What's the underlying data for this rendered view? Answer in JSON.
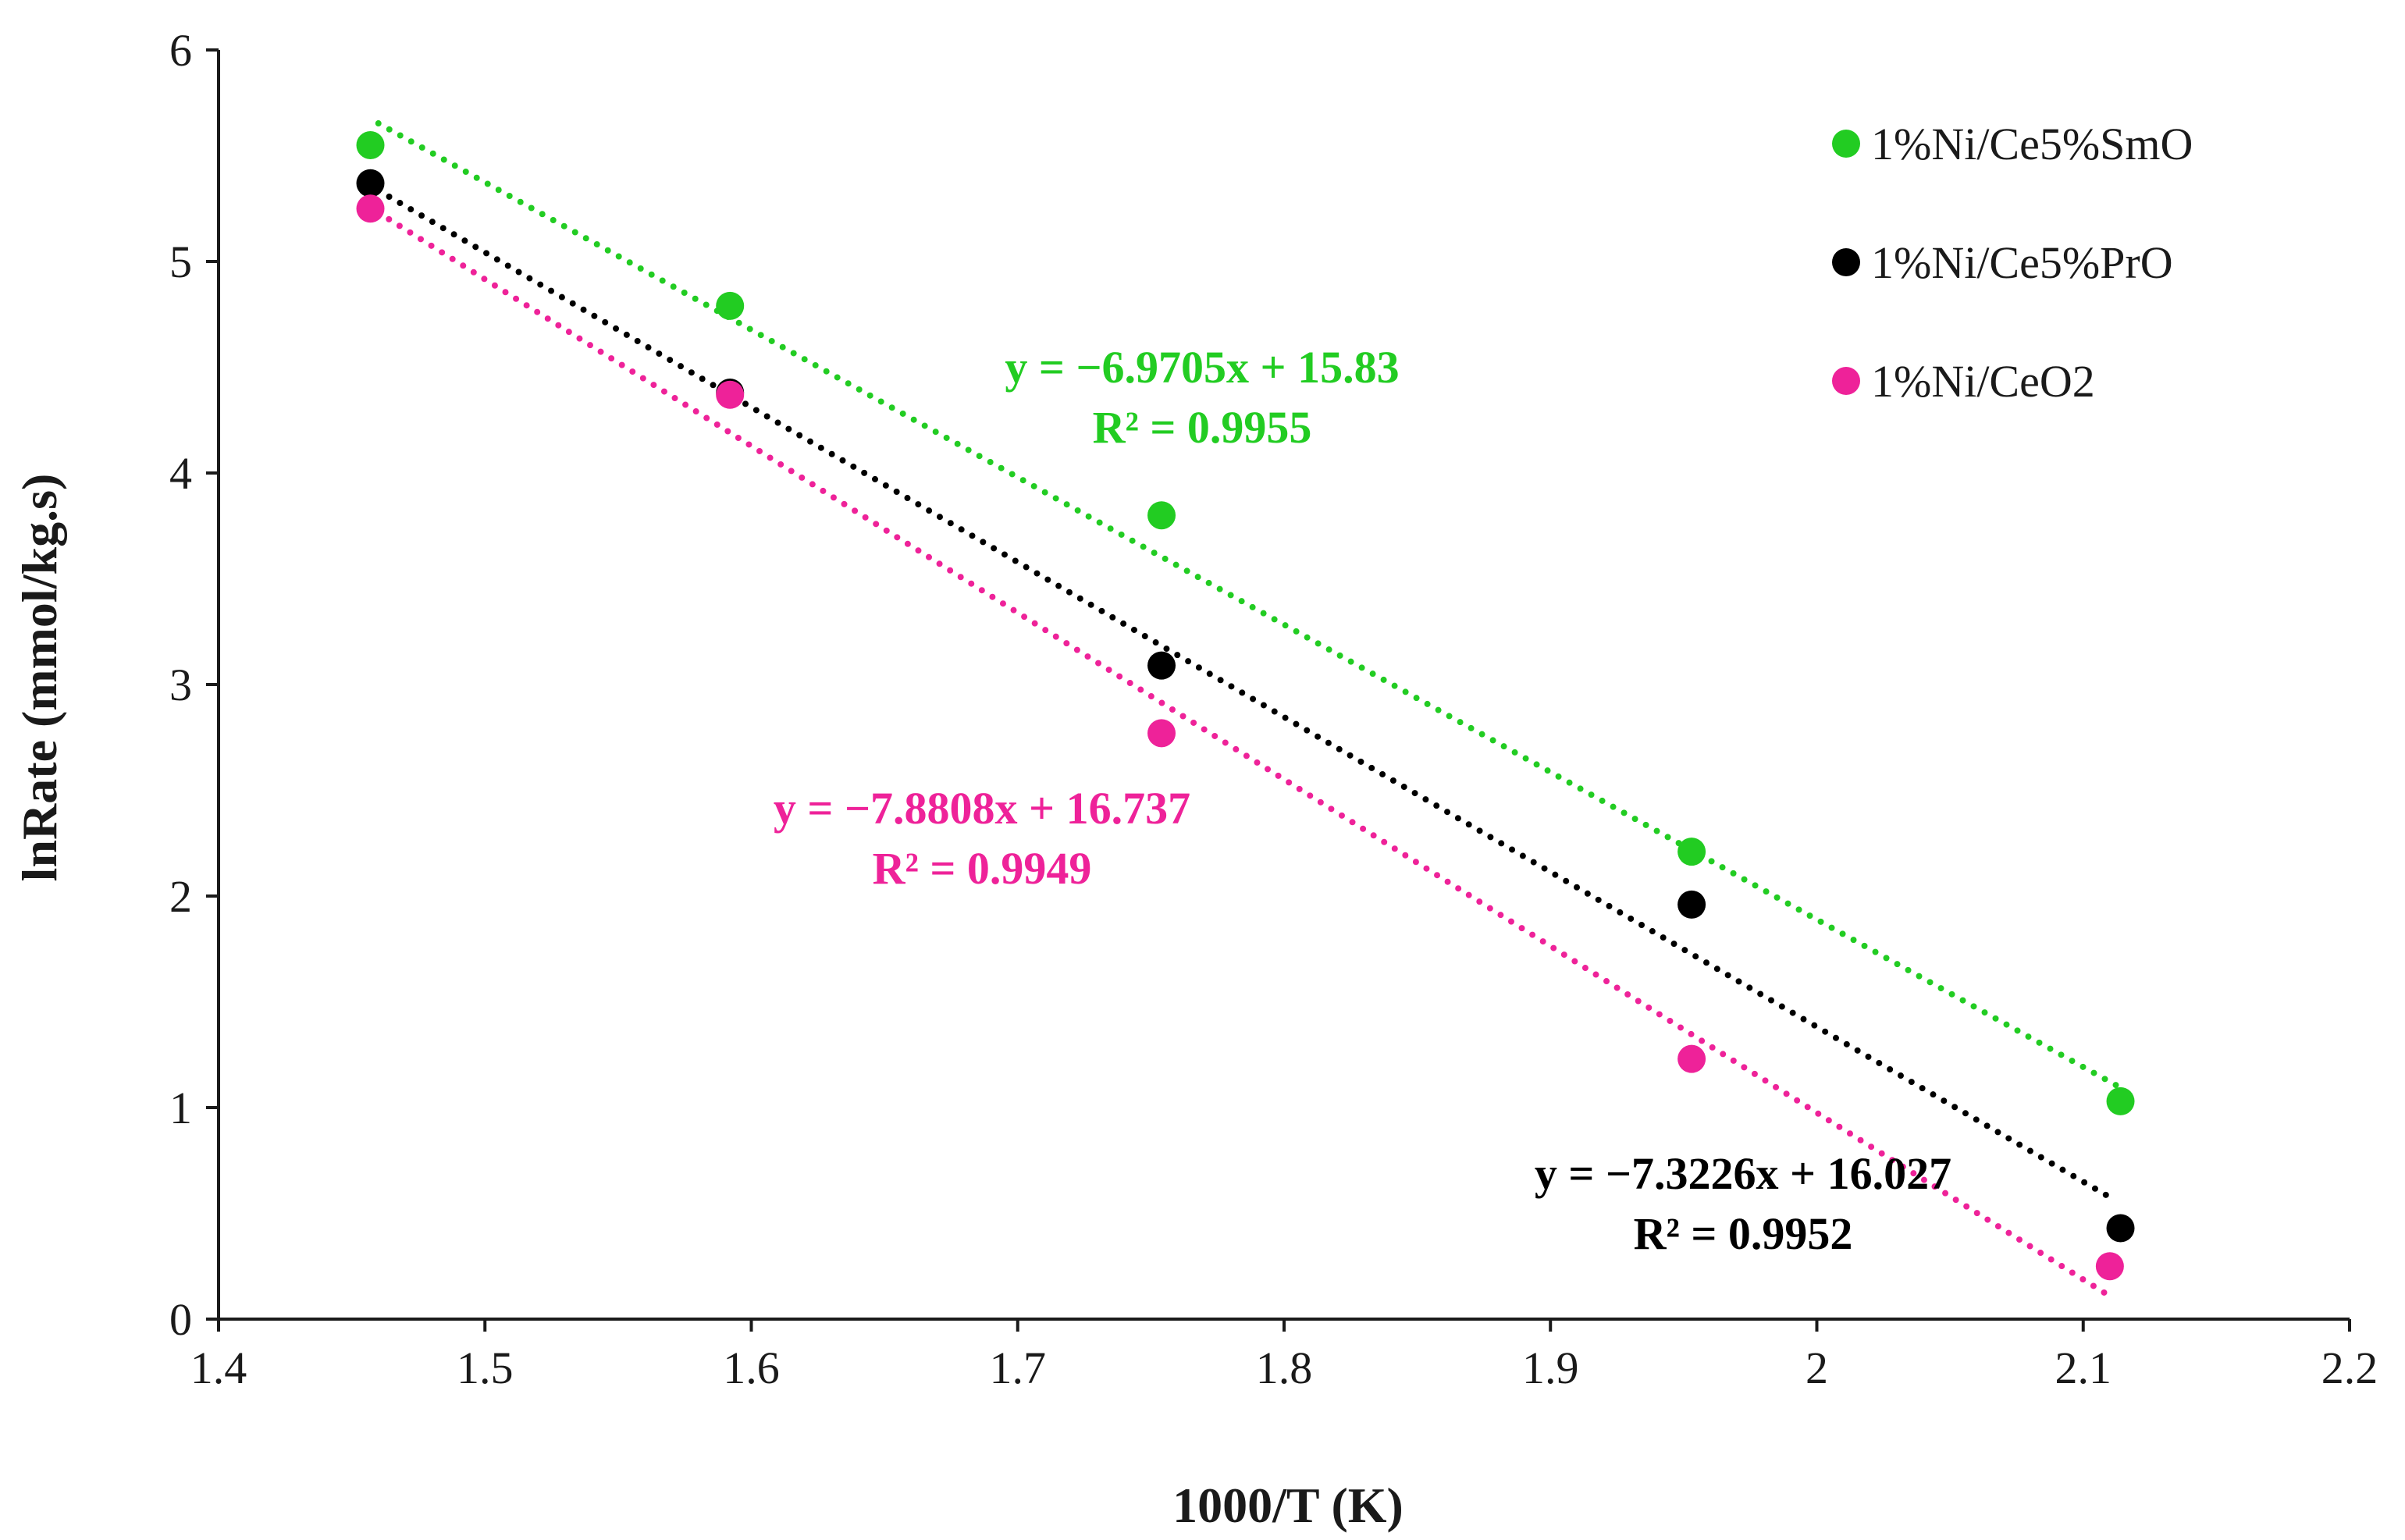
{
  "chart_data": {
    "type": "scatter",
    "title": "",
    "xlabel": "1000/T (K)",
    "ylabel": "lnRate (mmol/kg.s)",
    "xlim": [
      1.4,
      2.2
    ],
    "ylim": [
      0,
      6
    ],
    "xticks": [
      "1.4",
      "1.5",
      "1.6",
      "1.7",
      "1.8",
      "1.9",
      "2",
      "2.1",
      "2.2"
    ],
    "yticks": [
      "0",
      "1",
      "2",
      "3",
      "4",
      "5",
      "6"
    ],
    "grid": false,
    "legend_position": "top-right",
    "series": [
      {
        "name": "1%Ni/Ce5%SmO",
        "color": "#22cc22",
        "x": [
          1.457,
          1.592,
          1.754,
          1.953,
          2.114
        ],
        "y": [
          5.55,
          4.79,
          3.8,
          2.21,
          1.03
        ],
        "trendline": {
          "slope": -6.9705,
          "intercept": 15.83,
          "x_range": [
            1.46,
            2.114
          ]
        },
        "equation": "y = −6.9705x + 15.83",
        "r2": "R² = 0.9955"
      },
      {
        "name": "1%Ni/Ce5%PrO",
        "color": "#000000",
        "x": [
          1.457,
          1.592,
          1.754,
          1.953,
          2.114
        ],
        "y": [
          5.37,
          4.38,
          3.09,
          1.96,
          0.43
        ],
        "trendline": {
          "slope": -7.3226,
          "intercept": 16.027,
          "x_range": [
            1.46,
            2.11
          ]
        },
        "equation": "y = −7.3226x + 16.027",
        "r2": "R² = 0.9952"
      },
      {
        "name": "1%Ni/CeO2",
        "color": "#ee2299",
        "x": [
          1.457,
          1.592,
          1.754,
          1.953,
          2.11
        ],
        "y": [
          5.25,
          4.37,
          2.77,
          1.23,
          0.25
        ],
        "trendline": {
          "slope": -7.8808,
          "intercept": 16.737,
          "x_range": [
            1.46,
            2.11
          ]
        },
        "equation": "y = −7.8808x + 16.737",
        "r2": "R² = 0.9949"
      }
    ]
  }
}
